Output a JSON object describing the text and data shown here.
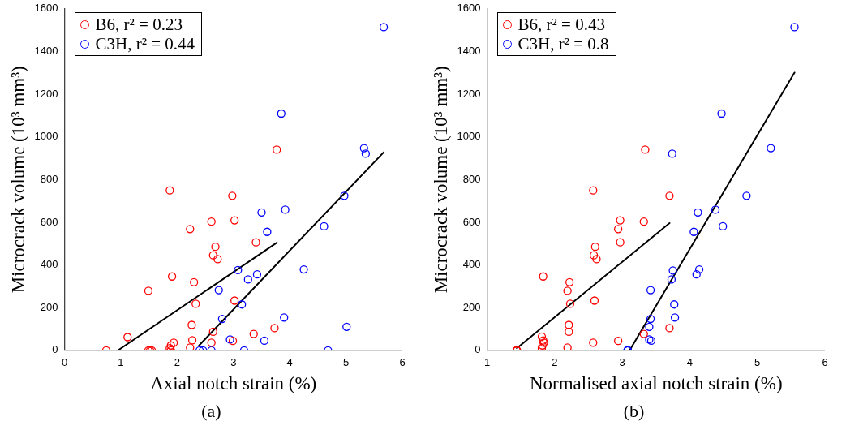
{
  "chart_data": [
    {
      "type": "scatter",
      "xlabel": "Axial notch strain (%)",
      "ylabel": "Microcrack volume (10³ mm³)",
      "xlim": [
        0,
        6
      ],
      "xticks": [
        0,
        1,
        2,
        3,
        4,
        5,
        6
      ],
      "ylim": [
        0,
        1600
      ],
      "yticks": [
        0,
        200,
        400,
        600,
        800,
        1000,
        1200,
        1400,
        1600
      ],
      "grid": false,
      "legend": "top left",
      "annotations": [
        "(a)"
      ],
      "series": [
        {
          "name": "B6, r² = 0.23",
          "marker": "circle",
          "color": "#ff0000",
          "x": [
            0.74,
            1.12,
            1.49,
            1.49,
            1.52,
            1.55,
            1.87,
            1.91,
            1.89,
            1.87,
            1.89,
            1.94,
            2.23,
            2.3,
            2.33,
            2.26,
            2.27,
            2.23,
            2.61,
            2.68,
            2.64,
            2.72,
            2.64,
            2.61,
            2.98,
            3.02,
            3.02,
            2.99,
            3.77,
            3.4,
            3.36,
            3.73
          ],
          "values": [
            0,
            62,
            279,
            0,
            0,
            0,
            749,
            346,
            23,
            10,
            0,
            36,
            568,
            319,
            218,
            119,
            47,
            13,
            603,
            485,
            445,
            427,
            87,
            36,
            724,
            609,
            233,
            44,
            940,
            506,
            77,
            104
          ]
        },
        {
          "name": "C3H, r² = 0.44",
          "marker": "circle",
          "color": "#0000ff",
          "x": [
            2.4,
            2.46,
            2.61,
            3.19,
            2.74,
            2.8,
            2.94,
            3.08,
            3.15,
            3.26,
            3.42,
            3.55,
            3.5,
            3.6,
            3.85,
            3.92,
            3.9,
            4.25,
            4.61,
            4.68,
            4.97,
            5.01,
            5.32,
            5.35,
            5.67
          ],
          "values": [
            0,
            0,
            0,
            0,
            282,
            147,
            51,
            376,
            215,
            332,
            356,
            45,
            646,
            555,
            1109,
            659,
            154,
            379,
            581,
            0,
            724,
            110,
            947,
            921,
            1514
          ]
        },
        {
          "type": "line",
          "marker": "none",
          "color": "#000000",
          "x": [
            0.95,
            3.77
          ],
          "values": [
            0,
            504
          ]
        },
        {
          "type": "line",
          "marker": "none",
          "color": "#000000",
          "x": [
            2.39,
            5.67
          ],
          "values": [
            23,
            928
          ]
        }
      ]
    },
    {
      "type": "scatter",
      "xlabel": "Normalised axial notch strain (%)",
      "ylabel": "Microcrack volume (10³ mm³)",
      "xlim": [
        1,
        6
      ],
      "xticks": [
        1,
        2,
        3,
        4,
        5,
        6
      ],
      "ylim": [
        0,
        1600
      ],
      "yticks": [
        0,
        200,
        400,
        600,
        800,
        1000,
        1200,
        1400,
        1600
      ],
      "grid": false,
      "legend": "top left",
      "annotations": [
        "(b)"
      ],
      "series": [
        {
          "name": "B6, r² = 0.43",
          "marker": "circle",
          "color": "#ff0000",
          "x": [
            1.44,
            1.44,
            1.44,
            1.44,
            1.44,
            1.83,
            1.81,
            1.83,
            1.84,
            1.82,
            1.81,
            2.19,
            2.22,
            2.23,
            2.21,
            2.21,
            2.19,
            2.57,
            2.6,
            2.58,
            2.62,
            2.59,
            2.57,
            2.94,
            2.97,
            2.97,
            2.94,
            3.34,
            3.32,
            3.7,
            3.7,
            3.32
          ],
          "values": [
            0,
            0,
            0,
            0,
            0,
            346,
            64,
            46,
            36,
            23,
            10,
            279,
            319,
            218,
            119,
            87,
            13,
            749,
            485,
            445,
            427,
            233,
            36,
            568,
            609,
            506,
            44,
            940,
            603,
            724,
            104,
            77
          ]
        },
        {
          "name": "C3H, r² = 0.8",
          "marker": "circle",
          "color": "#0000ff",
          "x": [
            3.08,
            3.08,
            3.08,
            3.08,
            3.42,
            3.42,
            3.4,
            3.4,
            3.43,
            3.74,
            3.75,
            3.73,
            3.77,
            3.78,
            4.12,
            4.06,
            4.1,
            4.14,
            4.47,
            4.38,
            4.49,
            4.84,
            5.2,
            5.55
          ],
          "values": [
            0,
            0,
            0,
            0,
            282,
            147,
            110,
            51,
            45,
            921,
            374,
            332,
            215,
            154,
            646,
            555,
            356,
            379,
            1109,
            659,
            581,
            724,
            947,
            1514
          ]
        },
        {
          "type": "line",
          "marker": "none",
          "color": "#000000",
          "x": [
            1.44,
            3.7
          ],
          "values": [
            10,
            596
          ]
        },
        {
          "type": "line",
          "marker": "none",
          "color": "#000000",
          "x": [
            3.11,
            5.55
          ],
          "values": [
            0,
            1301
          ]
        }
      ]
    }
  ]
}
